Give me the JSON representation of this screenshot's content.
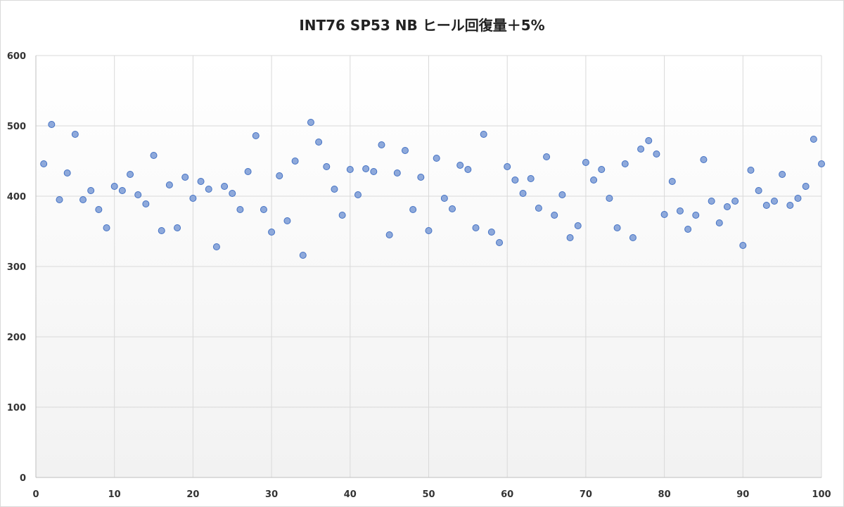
{
  "chart_data": {
    "type": "scatter",
    "title": "INT76 SP53 NB ヒール回復量＋5%",
    "xlabel": "",
    "ylabel": "",
    "xlim": [
      0,
      100
    ],
    "ylim": [
      0,
      600
    ],
    "x_ticks": [
      0,
      10,
      20,
      30,
      40,
      50,
      60,
      70,
      80,
      90,
      100
    ],
    "y_ticks": [
      0,
      100,
      200,
      300,
      400,
      500,
      600
    ],
    "grid": true,
    "legend": "none",
    "colors": {
      "marker_fill": "#8ea9db",
      "marker_stroke": "#4472c4",
      "grid": "#d9d9d9",
      "plot_gradient_top": "#ffffff",
      "plot_gradient_bottom": "#f2f2f2"
    },
    "series": [
      {
        "x": [
          1,
          2,
          3,
          4,
          5,
          6,
          7,
          8,
          9,
          10,
          11,
          12,
          13,
          14,
          15,
          16,
          17,
          18,
          19,
          20,
          21,
          22,
          23,
          24,
          25,
          26,
          27,
          28,
          29,
          30,
          31,
          32,
          33,
          34,
          35,
          36,
          37,
          38,
          39,
          40,
          41,
          42,
          43,
          44,
          45,
          46,
          47,
          48,
          49,
          50,
          51,
          52,
          53,
          54,
          55,
          56,
          57,
          58,
          59,
          60,
          61,
          62,
          63,
          64,
          65,
          66,
          67,
          68,
          69,
          70,
          71,
          72,
          73,
          74,
          75,
          76,
          77,
          78,
          79,
          80,
          81,
          82,
          83,
          84,
          85,
          86,
          87,
          88,
          89,
          90,
          91,
          92,
          93,
          94,
          95,
          96,
          97,
          98,
          99,
          100
        ],
        "y": [
          446,
          502,
          395,
          433,
          488,
          395,
          408,
          381,
          355,
          414,
          408,
          431,
          402,
          389,
          458,
          351,
          416,
          355,
          427,
          397,
          421,
          410,
          328,
          414,
          404,
          381,
          435,
          486,
          381,
          349,
          429,
          365,
          450,
          316,
          505,
          477,
          442,
          410,
          373,
          438,
          402,
          439,
          435,
          473,
          345,
          433,
          465,
          381,
          427,
          351,
          454,
          397,
          382,
          444,
          438,
          355,
          488,
          349,
          334,
          442,
          423,
          404,
          425,
          383,
          456,
          373,
          402,
          341,
          358,
          448,
          423,
          438,
          397,
          355,
          446,
          341,
          467,
          479,
          460,
          374,
          421,
          379,
          353,
          373,
          452,
          393,
          362,
          385,
          393,
          330,
          437,
          408,
          387,
          393,
          431,
          387,
          397,
          414,
          481,
          446
        ]
      }
    ]
  }
}
